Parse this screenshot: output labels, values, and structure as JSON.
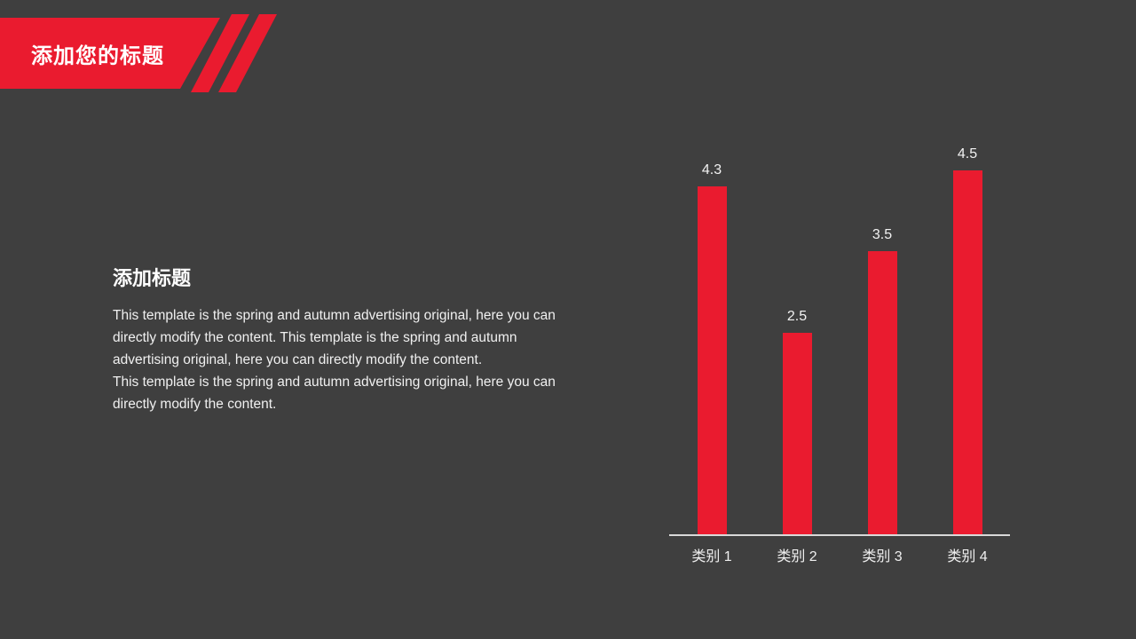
{
  "slide": {
    "background_color": "#3F3F3F",
    "accent_red": "#EA1B2F"
  },
  "header": {
    "title": "添加您的标题",
    "decoration": "red-banner-with-two-diagonal-stripes"
  },
  "content": {
    "section_title": "添加标题",
    "paragraphs": [
      "This template is the spring and autumn advertising original, here you can directly modify the content. This template is the spring and autumn advertising original, here you can directly modify the content.",
      "This template is the spring and autumn advertising original, here you can directly modify the content."
    ]
  },
  "chart_data": {
    "type": "bar",
    "categories": [
      "类别 1",
      "类别 2",
      "类别 3",
      "类别 4"
    ],
    "values": [
      4.3,
      2.5,
      3.5,
      4.5
    ],
    "data_labels": [
      "4.3",
      "2.5",
      "3.5",
      "4.5"
    ],
    "title": "",
    "xlabel": "",
    "ylabel": "",
    "ylim": [
      0,
      4.85
    ],
    "grid": false,
    "legend": false,
    "bar_color": "#EA1B2F",
    "data_label_color": "#F2F2F2",
    "category_label_color": "#EFEFEF",
    "axis_line_color": "#D9D9D9"
  }
}
